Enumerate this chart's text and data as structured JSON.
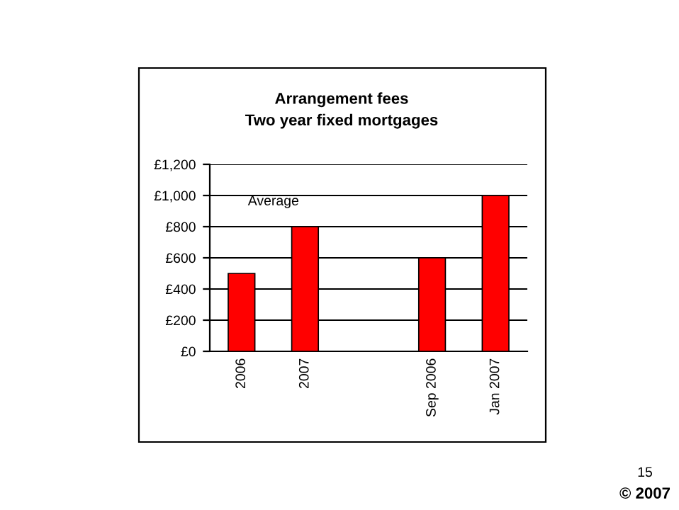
{
  "chart_data": {
    "type": "bar",
    "title": "Arrangement fees\nTwo year fixed mortgages",
    "categories": [
      "2006",
      "2007",
      null,
      "Sep 2006",
      "Jan 2007"
    ],
    "values": [
      500,
      800,
      null,
      600,
      1000
    ],
    "color": "#ff0000",
    "ylim": [
      0,
      1200
    ],
    "yticks": [
      {
        "value": 0,
        "label": "£0"
      },
      {
        "value": 200,
        "label": "£200"
      },
      {
        "value": 400,
        "label": "£400"
      },
      {
        "value": 600,
        "label": "£600"
      },
      {
        "value": 800,
        "label": "£800"
      },
      {
        "value": 1000,
        "label": "£1,000"
      },
      {
        "value": 1200,
        "label": "£1,200"
      }
    ],
    "grid": "y",
    "legend": false,
    "annotations": [
      "Average",
      "15",
      "© 2007"
    ]
  }
}
